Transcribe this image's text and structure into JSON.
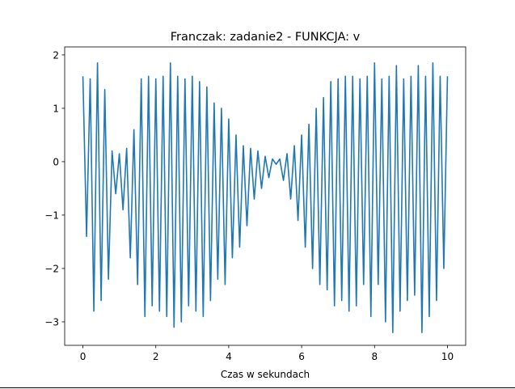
{
  "chart_data": {
    "type": "line",
    "title": "Franczak: zadanie2 - FUNKCJA: v",
    "x_label": "Czas w sekundach",
    "x": [
      0.0,
      0.1,
      0.2,
      0.3,
      0.4,
      0.5,
      0.6,
      0.7,
      0.8,
      0.9,
      1.0,
      1.1,
      1.2,
      1.3,
      1.4,
      1.5,
      1.6,
      1.7,
      1.8,
      1.9,
      2.0,
      2.1,
      2.2,
      2.3,
      2.4,
      2.5,
      2.6,
      2.7,
      2.8,
      2.9,
      3.0,
      3.1,
      3.2,
      3.3,
      3.4,
      3.5,
      3.6,
      3.7,
      3.8,
      3.9,
      4.0,
      4.1,
      4.2,
      4.3,
      4.4,
      4.5,
      4.6,
      4.7,
      4.8,
      4.9,
      5.0,
      5.1,
      5.2,
      5.3,
      5.4,
      5.5,
      5.6,
      5.7,
      5.8,
      5.9,
      6.0,
      6.1,
      6.2,
      6.3,
      6.4,
      6.5,
      6.6,
      6.7,
      6.8,
      6.9,
      7.0,
      7.1,
      7.2,
      7.3,
      7.4,
      7.5,
      7.6,
      7.7,
      7.8,
      7.9,
      8.0,
      8.1,
      8.2,
      8.3,
      8.4,
      8.5,
      8.6,
      8.7,
      8.8,
      8.9,
      9.0,
      9.1,
      9.2,
      9.3,
      9.4,
      9.5,
      9.6,
      9.7,
      9.8,
      9.9,
      10.0
    ],
    "series": [
      {
        "color": "#1f77b4",
        "values": [
          1.6,
          -1.4,
          1.55,
          -2.8,
          1.85,
          -2.6,
          1.35,
          -2.2,
          0.2,
          -0.6,
          0.15,
          -0.9,
          0.25,
          -1.8,
          0.6,
          -2.3,
          1.55,
          -2.9,
          1.6,
          -2.7,
          1.55,
          -2.8,
          1.6,
          -2.9,
          1.85,
          -3.1,
          1.6,
          -3.0,
          1.55,
          -2.7,
          1.6,
          -2.8,
          1.5,
          -2.9,
          1.4,
          -2.6,
          1.1,
          -2.2,
          1.0,
          -2.3,
          0.8,
          -1.8,
          0.5,
          -1.6,
          0.3,
          -1.2,
          0.25,
          -0.7,
          0.2,
          -0.5,
          0.1,
          -0.3,
          0.05,
          -0.05,
          0.05,
          -0.35,
          0.15,
          -0.7,
          0.3,
          -1.1,
          0.5,
          -1.6,
          0.7,
          -2.0,
          1.0,
          -2.3,
          1.2,
          -2.4,
          1.5,
          -2.7,
          1.55,
          -2.6,
          1.6,
          -2.8,
          1.6,
          -2.7,
          1.55,
          -2.3,
          1.6,
          -2.9,
          1.85,
          -2.3,
          1.55,
          -3.0,
          1.6,
          -3.2,
          1.8,
          -2.8,
          1.55,
          -2.6,
          1.6,
          -2.5,
          1.8,
          -3.2,
          1.6,
          -2.9,
          1.85,
          -2.6,
          1.6,
          -2.0,
          1.6
        ]
      }
    ],
    "xlim": [
      -0.5,
      10.5
    ],
    "ylim": [
      -3.44,
      2.15
    ],
    "xticks": [
      0,
      2,
      4,
      6,
      8,
      10
    ],
    "yticks": [
      {
        "value": -3,
        "label": "−3"
      },
      {
        "value": -2,
        "label": "−2"
      },
      {
        "value": -1,
        "label": "−1"
      },
      0,
      1,
      2
    ]
  }
}
